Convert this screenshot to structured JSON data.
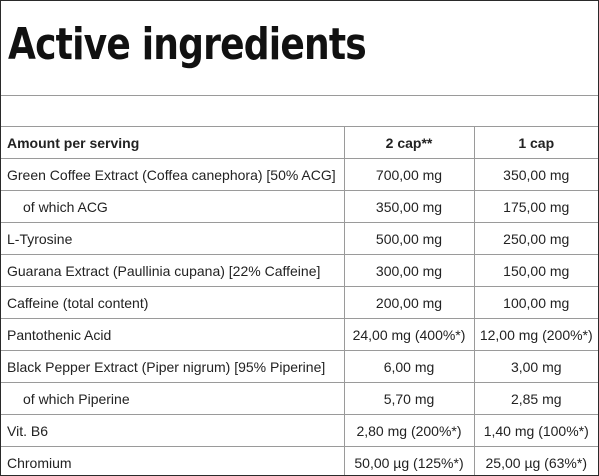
{
  "title": "Active ingredients",
  "table": {
    "headers": [
      "Amount per serving",
      "2 cap**",
      "1 cap"
    ],
    "rows": [
      {
        "name": "Green Coffee Extract (Coffea canephora) [50% ACG]",
        "two_cap": "700,00 mg",
        "one_cap": "350,00 mg",
        "indented": false
      },
      {
        "name": "of which ACG",
        "two_cap": "350,00 mg",
        "one_cap": "175,00 mg",
        "indented": true
      },
      {
        "name": "L-Tyrosine",
        "two_cap": "500,00 mg",
        "one_cap": "250,00 mg",
        "indented": false
      },
      {
        "name": "Guarana Extract (Paullinia cupana) [22% Caffeine]",
        "two_cap": "300,00 mg",
        "one_cap": "150,00 mg",
        "indented": false
      },
      {
        "name": "Caffeine (total content)",
        "two_cap": "200,00 mg",
        "one_cap": "100,00 mg",
        "indented": false
      },
      {
        "name": "Pantothenic Acid",
        "two_cap": "24,00 mg (400%*)",
        "one_cap": "12,00 mg (200%*)",
        "indented": false
      },
      {
        "name": "Black Pepper Extract (Piper nigrum) [95% Piperine]",
        "two_cap": "6,00 mg",
        "one_cap": "3,00 mg",
        "indented": false
      },
      {
        "name": "of which Piperine",
        "two_cap": "5,70 mg",
        "one_cap": "2,85 mg",
        "indented": true
      },
      {
        "name": "Vit. B6",
        "two_cap": "2,80 mg (200%*)",
        "one_cap": "1,40 mg (100%*)",
        "indented": false
      },
      {
        "name": "Chromium",
        "two_cap": "50,00 µg (125%*)",
        "one_cap": "25,00 µg (63%*)",
        "indented": false
      }
    ]
  }
}
